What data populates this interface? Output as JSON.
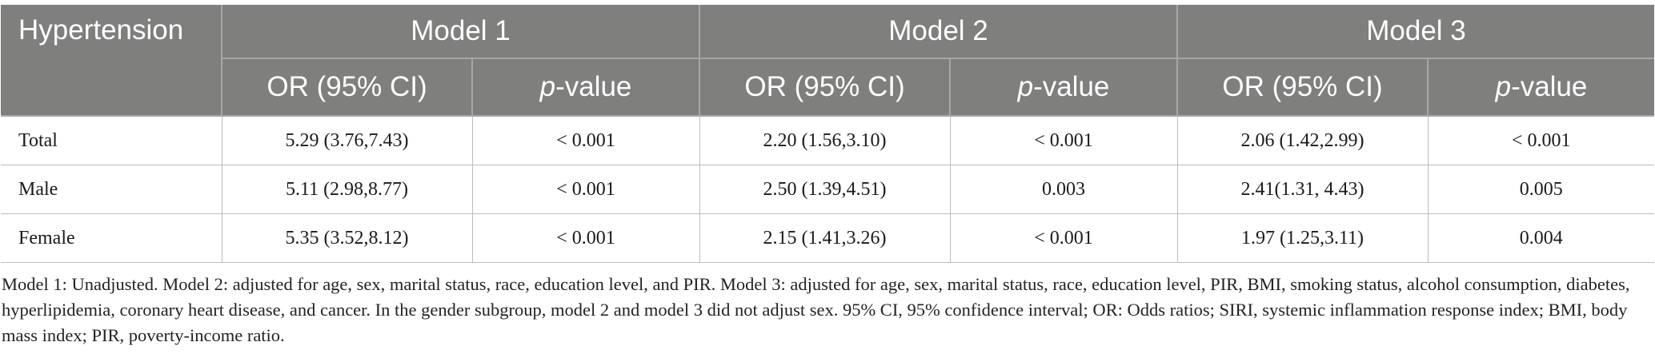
{
  "table": {
    "corner_label": "Hypertension",
    "models": [
      {
        "label": "Model 1"
      },
      {
        "label": "Model 2"
      },
      {
        "label": "Model 3"
      }
    ],
    "subheaders": {
      "or_label": "OR (95% CI)",
      "p_italic": "p",
      "p_rest": "-value"
    },
    "rows": [
      {
        "label": "Total",
        "cells": [
          "5.29 (3.76,7.43)",
          "< 0.001",
          "2.20 (1.56,3.10)",
          "< 0.001",
          "2.06 (1.42,2.99)",
          "< 0.001"
        ]
      },
      {
        "label": "Male",
        "cells": [
          "5.11 (2.98,8.77)",
          "< 0.001",
          "2.50 (1.39,4.51)",
          "0.003",
          "2.41(1.31, 4.43)",
          "0.005"
        ]
      },
      {
        "label": "Female",
        "cells": [
          "5.35 (3.52,8.12)",
          "< 0.001",
          "2.15 (1.41,3.26)",
          "< 0.001",
          "1.97 (1.25,3.11)",
          "0.004"
        ]
      }
    ]
  },
  "footnote": "Model 1: Unadjusted. Model 2: adjusted for age, sex, marital status, race, education level, and PIR. Model 3: adjusted for age, sex, marital status, race, education level, PIR, BMI, smoking status, alcohol consumption, diabetes, hyperlipidemia, coronary heart disease, and cancer. In the gender subgroup, model 2 and model 3 did not adjust sex. 95% CI, 95% confidence interval; OR: Odds ratios; SIRI, systemic inflammation response index; BMI, body mass index; PIR, poverty-income ratio."
}
